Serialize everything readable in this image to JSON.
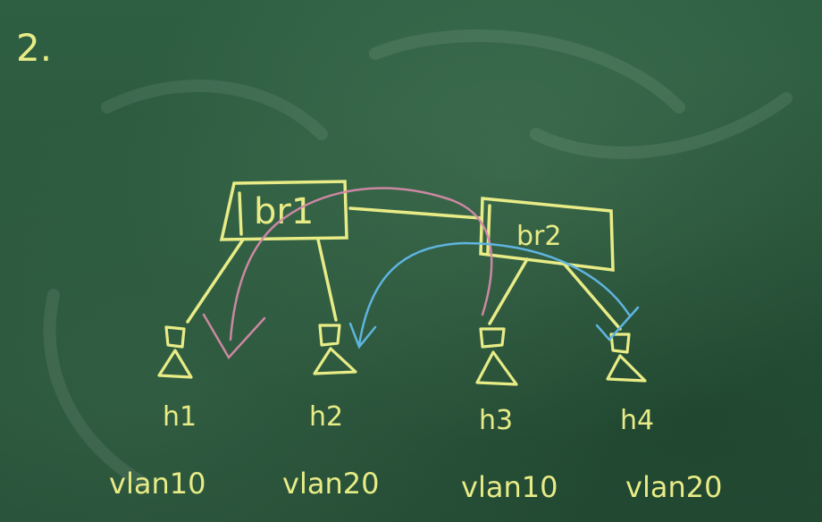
{
  "board": {
    "number": "2.",
    "switches": [
      {
        "id": "br1",
        "label": "br1"
      },
      {
        "id": "br2",
        "label": "br2"
      }
    ],
    "hosts": [
      {
        "id": "h1",
        "label": "h1",
        "vlan": "vlan10"
      },
      {
        "id": "h2",
        "label": "h2",
        "vlan": "vlan20"
      },
      {
        "id": "h3",
        "label": "h3",
        "vlan": "vlan10"
      },
      {
        "id": "h4",
        "label": "h4",
        "vlan": "vlan20"
      }
    ],
    "colors": {
      "chalk_yellow": "#e8ec86",
      "chalk_pink": "#d48aa8",
      "chalk_blue": "#5fb4e0",
      "board_green": "#2c5a3e"
    }
  }
}
